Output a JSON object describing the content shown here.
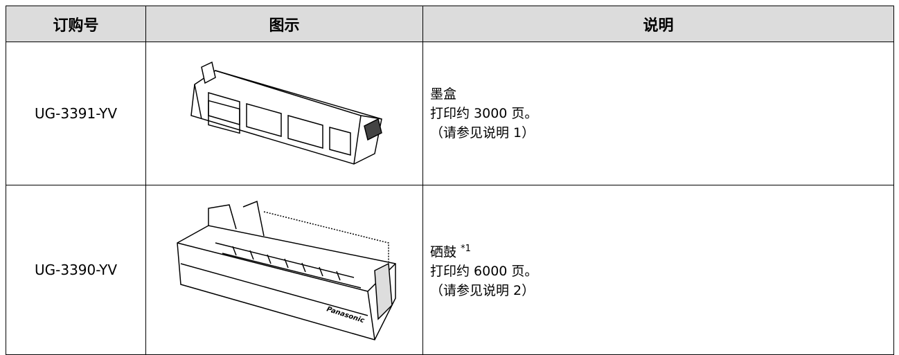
{
  "table": {
    "header": [
      "订购号",
      "图示",
      "说明"
    ],
    "rows": [
      {
        "order": "UG-3391-YV",
        "desc": [
          "墨盒",
          "打印约 3000 页。",
          "（请参见说明 1）"
        ]
      },
      {
        "order": "UG-3390-YV",
        "desc": [
          "硒鼓",
          "打印约 6000 页。",
          "（请参见说明 2）"
        ],
        "note": "*1",
        "image_text": "Panasonic"
      }
    ]
  }
}
